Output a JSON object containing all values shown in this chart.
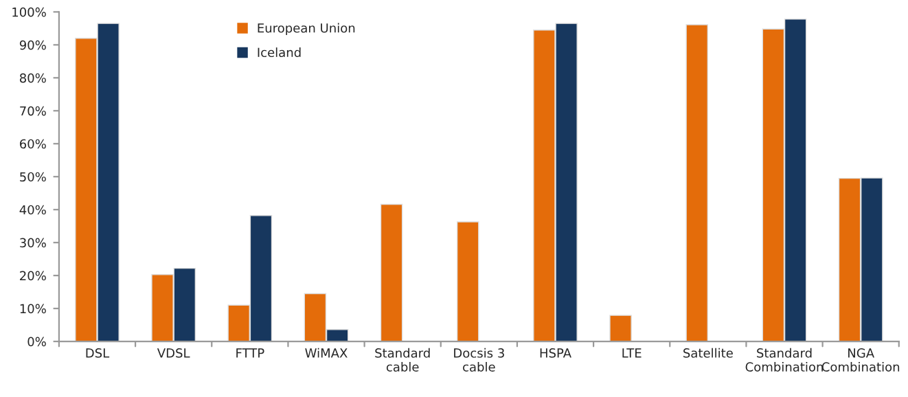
{
  "chart_data": {
    "type": "bar",
    "categories": [
      "DSL",
      "VDSL",
      "FTTP",
      "WiMAX",
      "Standard\ncable",
      "Docsis 3\ncable",
      "HSPA",
      "LTE",
      "Satellite",
      "Standard\nCombination",
      "NGA\nCombination"
    ],
    "series": [
      {
        "name": "European Union",
        "color": "#e46c0a",
        "values": [
          92,
          20.3,
          11,
          14.5,
          41.6,
          36.3,
          94.5,
          7.9,
          96.1,
          94.8,
          49.5
        ]
      },
      {
        "name": "Iceland",
        "color": "#17375e",
        "values": [
          96.5,
          22.2,
          38.2,
          3.6,
          null,
          null,
          96.5,
          null,
          null,
          97.8,
          49.6
        ]
      }
    ],
    "ylim": [
      0,
      100
    ],
    "yticks": [
      {
        "value": 0,
        "label": "0%"
      },
      {
        "value": 10,
        "label": "10%"
      },
      {
        "value": 20,
        "label": "20%"
      },
      {
        "value": 30,
        "label": "30%"
      },
      {
        "value": 40,
        "label": "40%"
      },
      {
        "value": 50,
        "label": "50%"
      },
      {
        "value": 60,
        "label": "60%"
      },
      {
        "value": 70,
        "label": "70%"
      },
      {
        "value": 80,
        "label": "80%"
      },
      {
        "value": 90,
        "label": "90%"
      },
      {
        "value": 100,
        "label": "100%"
      }
    ],
    "grid": false,
    "legend": "top"
  }
}
